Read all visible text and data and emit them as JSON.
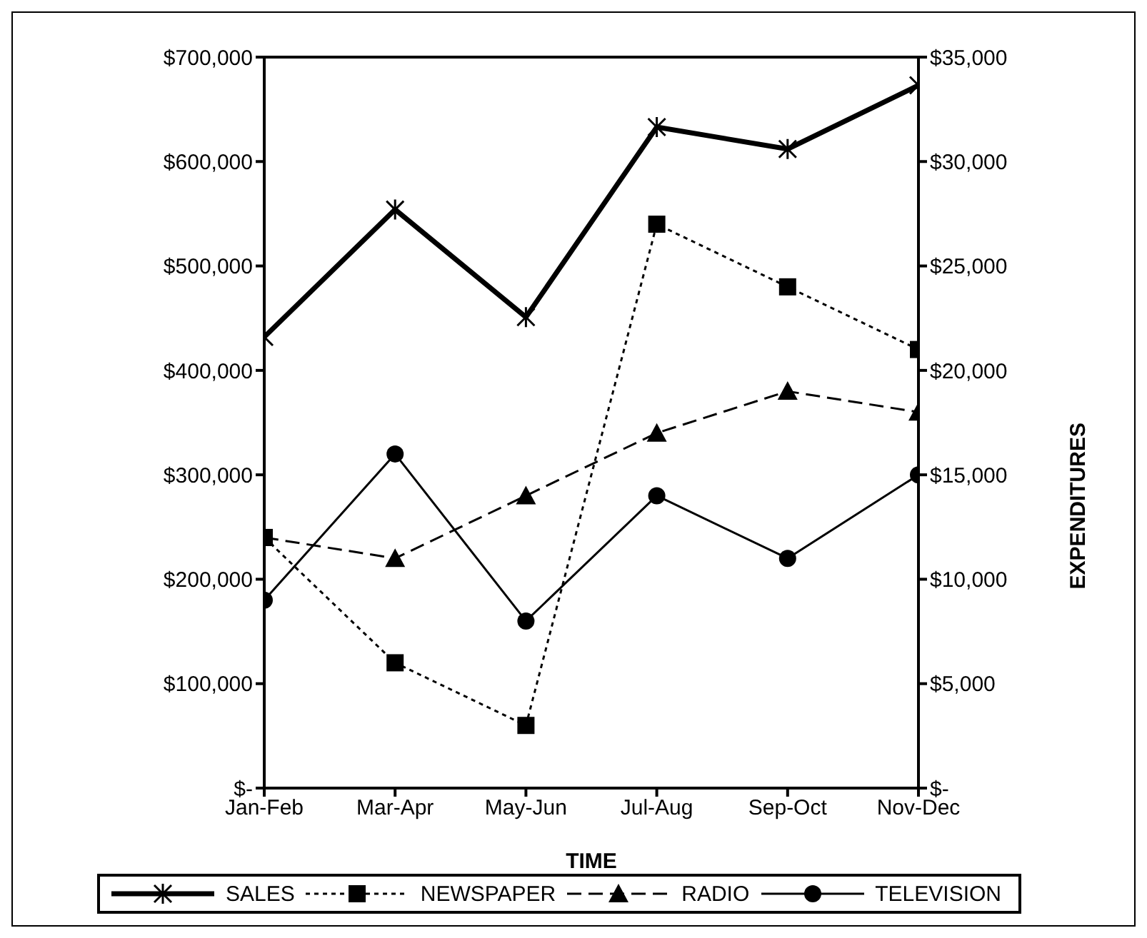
{
  "chart_data": {
    "type": "line",
    "xlabel": "TIME",
    "y2label": "EXPENDITURES",
    "categories": [
      "Jan-Feb",
      "Mar-Apr",
      "May-Jun",
      "Jul-Aug",
      "Sep-Oct",
      "Nov-Dec"
    ],
    "series": [
      {
        "name": "SALES",
        "color": "#000000",
        "marker": "cross",
        "line_style": "solid",
        "axis": "y",
        "values": [
          432000,
          554000,
          451000,
          633000,
          612000,
          673000
        ]
      },
      {
        "name": "NEWSPAPER",
        "color": "#000000",
        "marker": "square",
        "line_style": "dotted",
        "axis": "y2",
        "values": [
          12000,
          6000,
          3000,
          27000,
          24000,
          21000
        ]
      },
      {
        "name": "RADIO",
        "color": "#000000",
        "marker": "triangle",
        "line_style": "dashed",
        "axis": "y2",
        "values": [
          12000,
          11000,
          14000,
          17000,
          19000,
          18000
        ]
      },
      {
        "name": "TELEVISION",
        "color": "#000000",
        "marker": "circle",
        "line_style": "solid",
        "axis": "y2",
        "values": [
          9000,
          16000,
          8000,
          14000,
          11000,
          15000
        ]
      }
    ],
    "ylim": [
      0,
      700000
    ],
    "yticks": [
      {
        "value": 0,
        "label": "$-"
      },
      {
        "value": 100000,
        "label": "$100,000"
      },
      {
        "value": 200000,
        "label": "$200,000"
      },
      {
        "value": 300000,
        "label": "$300,000"
      },
      {
        "value": 400000,
        "label": "$400,000"
      },
      {
        "value": 500000,
        "label": "$500,000"
      },
      {
        "value": 600000,
        "label": "$600,000"
      },
      {
        "value": 700000,
        "label": "$700,000"
      }
    ],
    "y2lim": [
      0,
      35000
    ],
    "y2ticks": [
      {
        "value": 0,
        "label": "$-"
      },
      {
        "value": 5000,
        "label": "$5,000"
      },
      {
        "value": 10000,
        "label": "$10,000"
      },
      {
        "value": 15000,
        "label": "$15,000"
      },
      {
        "value": 20000,
        "label": "$20,000"
      },
      {
        "value": 25000,
        "label": "$25,000"
      },
      {
        "value": 30000,
        "label": "$30,000"
      },
      {
        "value": 35000,
        "label": "$35,000"
      }
    ],
    "grid": false,
    "legend": "bottom"
  }
}
